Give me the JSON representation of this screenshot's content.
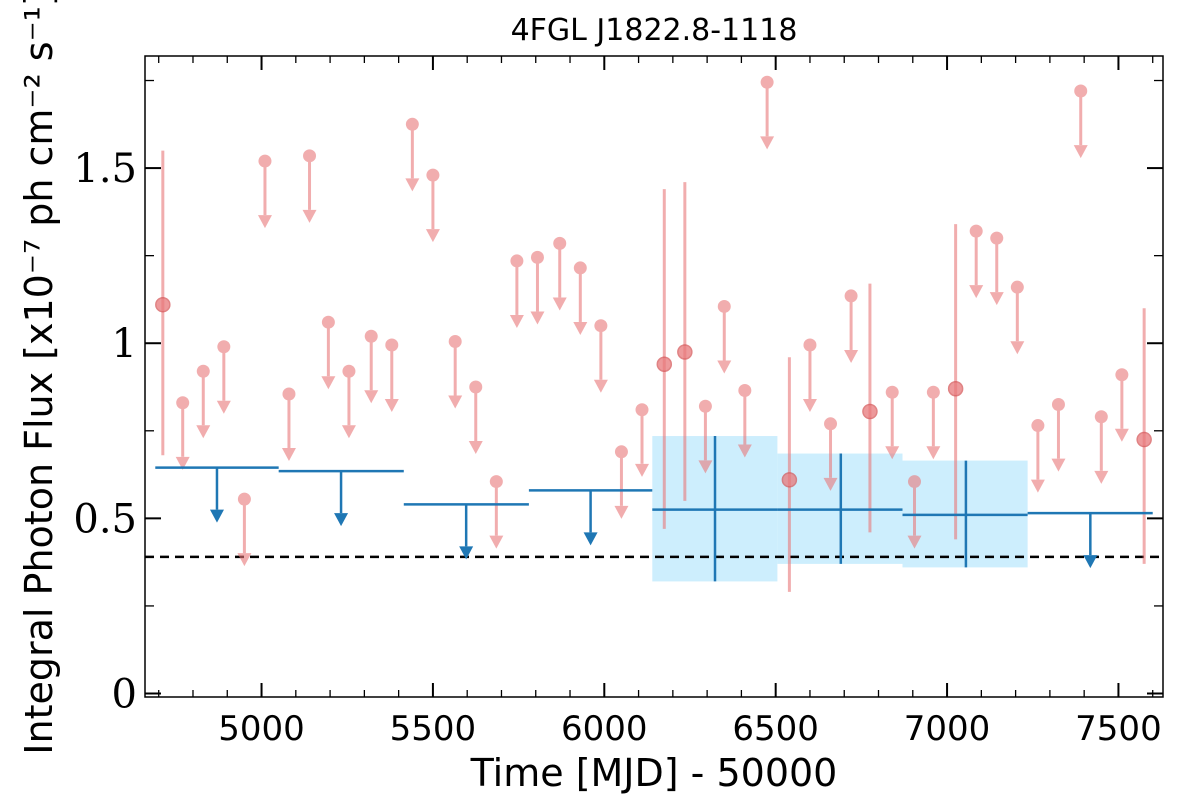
{
  "chart_data": {
    "type": "scatter",
    "title": "4FGL J1822.8-1118",
    "xlabel": "Time [MJD] - 50000",
    "ylabel": "Integral Photon Flux [x10⁻⁷ ph cm⁻² s⁻¹]",
    "xlim": [
      4660,
      7630
    ],
    "ylim": [
      -0.01,
      1.82
    ],
    "x_ticks": [
      5000,
      5500,
      6000,
      6500,
      7000,
      7500
    ],
    "x_tick_labels": [
      "5000",
      "5500",
      "6000",
      "6500",
      "7000",
      "7500"
    ],
    "y_ticks": [
      0,
      0.5,
      1,
      1.5
    ],
    "y_tick_labels": [
      "0",
      "0.5",
      "1",
      "1.5"
    ],
    "reference_line": 0.39,
    "colors": {
      "short_bins": "#e8787a",
      "long_bins": "#1f77b4",
      "band": "#cdeefd",
      "reference": "#000000"
    },
    "short_bin_detections": [
      {
        "x": 4712,
        "y": 1.11,
        "lo": 0.68,
        "hi": 1.55
      },
      {
        "x": 6175,
        "y": 0.94,
        "lo": 0.47,
        "hi": 1.44
      },
      {
        "x": 6235,
        "y": 0.975,
        "lo": 0.55,
        "hi": 1.46
      },
      {
        "x": 6540,
        "y": 0.61,
        "lo": 0.29,
        "hi": 0.96
      },
      {
        "x": 6775,
        "y": 0.805,
        "lo": 0.46,
        "hi": 1.17
      },
      {
        "x": 7025,
        "y": 0.87,
        "lo": 0.44,
        "hi": 1.34
      },
      {
        "x": 7575,
        "y": 0.725,
        "lo": 0.37,
        "hi": 1.1
      }
    ],
    "short_bin_upper_limits": [
      {
        "x": 4770,
        "y": 0.83
      },
      {
        "x": 4830,
        "y": 0.92
      },
      {
        "x": 4890,
        "y": 0.99
      },
      {
        "x": 4950,
        "y": 0.555
      },
      {
        "x": 5010,
        "y": 1.52
      },
      {
        "x": 5080,
        "y": 0.855
      },
      {
        "x": 5140,
        "y": 1.535
      },
      {
        "x": 5195,
        "y": 1.06
      },
      {
        "x": 5255,
        "y": 0.92
      },
      {
        "x": 5320,
        "y": 1.02
      },
      {
        "x": 5380,
        "y": 0.995
      },
      {
        "x": 5440,
        "y": 1.625
      },
      {
        "x": 5500,
        "y": 1.48
      },
      {
        "x": 5565,
        "y": 1.005
      },
      {
        "x": 5625,
        "y": 0.875
      },
      {
        "x": 5685,
        "y": 0.605
      },
      {
        "x": 5745,
        "y": 1.235
      },
      {
        "x": 5805,
        "y": 1.245
      },
      {
        "x": 5870,
        "y": 1.285
      },
      {
        "x": 5930,
        "y": 1.215
      },
      {
        "x": 5990,
        "y": 1.05
      },
      {
        "x": 6050,
        "y": 0.69
      },
      {
        "x": 6110,
        "y": 0.81
      },
      {
        "x": 6295,
        "y": 0.82
      },
      {
        "x": 6350,
        "y": 1.105
      },
      {
        "x": 6410,
        "y": 0.865
      },
      {
        "x": 6475,
        "y": 1.745
      },
      {
        "x": 6600,
        "y": 0.995
      },
      {
        "x": 6660,
        "y": 0.77
      },
      {
        "x": 6720,
        "y": 1.135
      },
      {
        "x": 6840,
        "y": 0.86
      },
      {
        "x": 6905,
        "y": 0.605
      },
      {
        "x": 6960,
        "y": 0.86
      },
      {
        "x": 7085,
        "y": 1.32
      },
      {
        "x": 7145,
        "y": 1.3
      },
      {
        "x": 7205,
        "y": 1.16
      },
      {
        "x": 7265,
        "y": 0.765
      },
      {
        "x": 7325,
        "y": 0.825
      },
      {
        "x": 7390,
        "y": 1.72
      },
      {
        "x": 7450,
        "y": 0.79
      },
      {
        "x": 7510,
        "y": 0.91
      }
    ],
    "long_bin_detections": [
      {
        "x0": 6140,
        "x1": 6505,
        "xc": 6323,
        "y": 0.525,
        "lo": 0.32,
        "hi": 0.735
      },
      {
        "x0": 6505,
        "x1": 6870,
        "xc": 6690,
        "y": 0.525,
        "lo": 0.37,
        "hi": 0.685
      },
      {
        "x0": 6870,
        "x1": 7235,
        "xc": 7055,
        "y": 0.51,
        "lo": 0.36,
        "hi": 0.665
      }
    ],
    "long_bin_upper_limits": [
      {
        "x0": 4690,
        "x1": 5050,
        "xc": 4870,
        "y": 0.645
      },
      {
        "x0": 5050,
        "x1": 5415,
        "xc": 5232,
        "y": 0.635
      },
      {
        "x0": 5415,
        "x1": 5780,
        "xc": 5597,
        "y": 0.54
      },
      {
        "x0": 5780,
        "x1": 6140,
        "xc": 5960,
        "y": 0.58
      },
      {
        "x0": 7235,
        "x1": 7600,
        "xc": 7418,
        "y": 0.515
      }
    ]
  }
}
